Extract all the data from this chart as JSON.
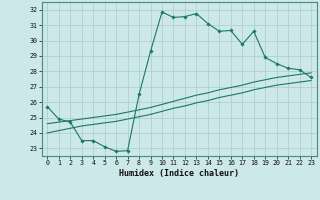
{
  "xlabel": "Humidex (Indice chaleur)",
  "background_color": "#cce8e8",
  "grid_color": "#aacccc",
  "line_color": "#1a7868",
  "xlim": [
    -0.5,
    23.5
  ],
  "ylim": [
    22.5,
    32.5
  ],
  "yticks": [
    23,
    24,
    25,
    26,
    27,
    28,
    29,
    30,
    31,
    32
  ],
  "xticks": [
    0,
    1,
    2,
    3,
    4,
    5,
    6,
    7,
    8,
    9,
    10,
    11,
    12,
    13,
    14,
    15,
    16,
    17,
    18,
    19,
    20,
    21,
    22,
    23
  ],
  "line1_x": [
    0,
    1,
    2,
    3,
    4,
    5,
    6,
    7,
    8,
    9,
    10,
    11,
    12,
    13,
    14,
    15,
    16,
    17,
    18,
    19,
    20,
    21,
    22,
    23
  ],
  "line1_y": [
    25.7,
    24.9,
    24.7,
    23.5,
    23.5,
    23.1,
    22.8,
    22.85,
    26.5,
    29.3,
    31.85,
    31.5,
    31.55,
    31.75,
    31.1,
    30.6,
    30.65,
    29.75,
    30.6,
    28.9,
    28.5,
    28.2,
    28.1,
    27.6
  ],
  "line2_x": [
    0,
    1,
    2,
    3,
    4,
    5,
    6,
    7,
    8,
    9,
    10,
    11,
    12,
    13,
    14,
    15,
    16,
    17,
    18,
    19,
    20,
    21,
    22,
    23
  ],
  "line2_y": [
    24.6,
    24.7,
    24.8,
    24.9,
    25.0,
    25.1,
    25.2,
    25.35,
    25.5,
    25.65,
    25.85,
    26.05,
    26.25,
    26.45,
    26.6,
    26.8,
    26.95,
    27.1,
    27.3,
    27.45,
    27.6,
    27.7,
    27.8,
    27.9
  ],
  "line3_x": [
    0,
    1,
    2,
    3,
    4,
    5,
    6,
    7,
    8,
    9,
    10,
    11,
    12,
    13,
    14,
    15,
    16,
    17,
    18,
    19,
    20,
    21,
    22,
    23
  ],
  "line3_y": [
    24.0,
    24.15,
    24.3,
    24.45,
    24.55,
    24.65,
    24.75,
    24.9,
    25.05,
    25.2,
    25.4,
    25.6,
    25.75,
    25.95,
    26.1,
    26.3,
    26.45,
    26.6,
    26.8,
    26.95,
    27.1,
    27.2,
    27.3,
    27.4
  ]
}
